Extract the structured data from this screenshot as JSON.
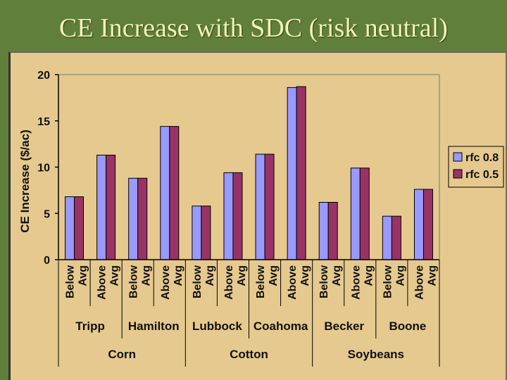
{
  "slide": {
    "title": "CE Increase with SDC (risk neutral)"
  },
  "colors": {
    "rfc08": "#9999ff",
    "rfc05": "#993366",
    "background": "#e6c98e",
    "slide": "#5f7f3a"
  },
  "chart_data": {
    "type": "bar",
    "ylabel": "CE Increase ($/ac)",
    "ylim": [
      0,
      20
    ],
    "yticks": [
      0,
      5,
      10,
      15,
      20
    ],
    "grid": false,
    "legend_position": "right",
    "levels": [
      "Below Avg",
      "Above Avg"
    ],
    "level_words": [
      [
        "Below",
        "Avg"
      ],
      [
        "Above",
        "Avg"
      ]
    ],
    "sites": [
      "Tripp",
      "Hamilton",
      "Lubbock",
      "Coahoma",
      "Becker",
      "Boone"
    ],
    "crops": [
      "Corn",
      "Cotton",
      "Soybeans"
    ],
    "categories": [
      "Tripp Below Avg",
      "Tripp Above Avg",
      "Hamilton Below Avg",
      "Hamilton Above Avg",
      "Lubbock Below Avg",
      "Lubbock Above Avg",
      "Coahoma Below Avg",
      "Coahoma Above Avg",
      "Becker Below Avg",
      "Becker Above Avg",
      "Boone Below Avg",
      "Boone Above Avg"
    ],
    "series": [
      {
        "name": "rfc 0.8",
        "values": [
          6.8,
          11.3,
          8.8,
          14.4,
          5.8,
          9.4,
          11.4,
          18.6,
          6.2,
          9.9,
          4.7,
          7.6
        ]
      },
      {
        "name": "rfc 0.5",
        "values": [
          6.8,
          11.3,
          8.8,
          14.4,
          5.8,
          9.4,
          11.4,
          18.7,
          6.2,
          9.9,
          4.7,
          7.6
        ]
      }
    ]
  }
}
